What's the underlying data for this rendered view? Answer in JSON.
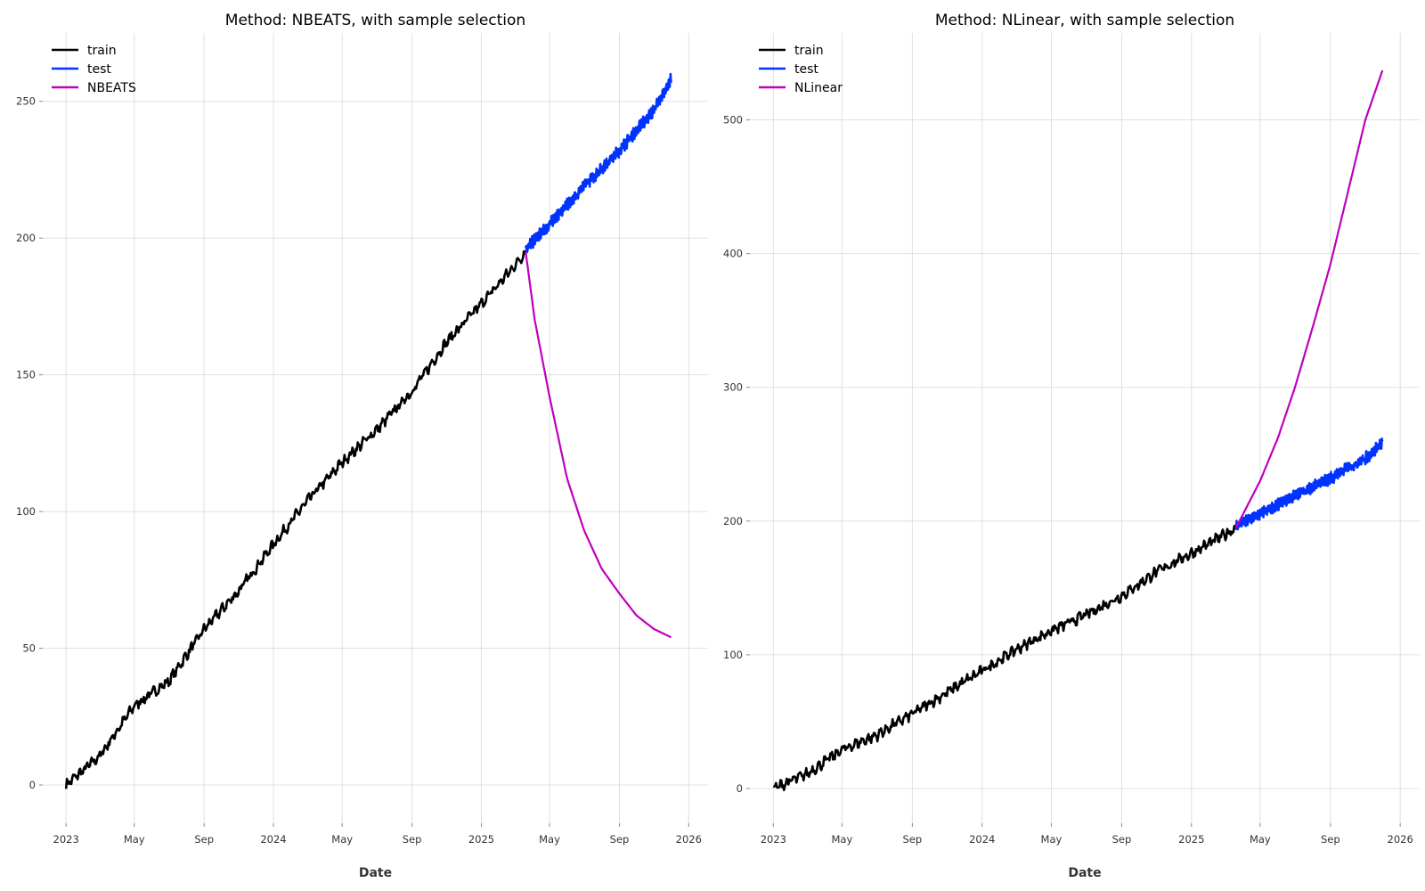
{
  "chart_data": [
    {
      "type": "line",
      "title": "Method: NBEATS, with sample selection",
      "xlabel": "Date",
      "ylabel": "",
      "x_ticks": [
        {
          "date": "2023-01-01",
          "label": "2023"
        },
        {
          "date": "2023-05-01",
          "label": "May"
        },
        {
          "date": "2023-09-01",
          "label": "Sep"
        },
        {
          "date": "2024-01-01",
          "label": "2024"
        },
        {
          "date": "2024-05-01",
          "label": "May"
        },
        {
          "date": "2024-09-01",
          "label": "Sep"
        },
        {
          "date": "2025-01-01",
          "label": "2025"
        },
        {
          "date": "2025-05-01",
          "label": "May"
        },
        {
          "date": "2025-09-01",
          "label": "Sep"
        },
        {
          "date": "2026-01-01",
          "label": "2026"
        }
      ],
      "y_ticks": [
        0,
        50,
        100,
        150,
        200,
        250
      ],
      "xlim": [
        "2022-11-21",
        "2026-02-04"
      ],
      "ylim": [
        -14,
        275
      ],
      "grid": true,
      "legend_position": "top-left",
      "series": [
        {
          "name": "train",
          "color": "#000000",
          "x": [
            "2023-01-01",
            "2023-03-01",
            "2023-05-01",
            "2023-07-01",
            "2023-09-01",
            "2023-11-01",
            "2024-01-01",
            "2024-03-01",
            "2024-05-01",
            "2024-07-01",
            "2024-09-01",
            "2024-11-01",
            "2025-01-01",
            "2025-03-01",
            "2025-03-20"
          ],
          "y": [
            0,
            10.5,
            29,
            38,
            57,
            71,
            88,
            104,
            118,
            130,
            144,
            162,
            176,
            190,
            195
          ]
        },
        {
          "name": "test",
          "color": "#0033ff",
          "x": [
            "2025-03-20",
            "2025-05-01",
            "2025-07-01",
            "2025-09-01",
            "2025-11-01",
            "2025-12-01"
          ],
          "y": [
            196,
            205,
            219,
            232,
            247,
            258
          ]
        },
        {
          "name": "NBEATS",
          "color": "#bf00bf",
          "x": [
            "2025-03-20",
            "2025-04-05",
            "2025-05-01",
            "2025-06-01",
            "2025-07-01",
            "2025-08-01",
            "2025-09-01",
            "2025-10-01",
            "2025-11-01",
            "2025-12-01"
          ],
          "y": [
            195,
            170,
            142,
            112,
            93,
            79,
            70,
            62,
            57,
            54
          ]
        }
      ]
    },
    {
      "type": "line",
      "title": "Method: NLinear, with sample selection",
      "xlabel": "Date",
      "ylabel": "",
      "x_ticks": [
        {
          "date": "2023-01-01",
          "label": "2023"
        },
        {
          "date": "2023-05-01",
          "label": "May"
        },
        {
          "date": "2023-09-01",
          "label": "Sep"
        },
        {
          "date": "2024-01-01",
          "label": "2024"
        },
        {
          "date": "2024-05-01",
          "label": "May"
        },
        {
          "date": "2024-09-01",
          "label": "Sep"
        },
        {
          "date": "2025-01-01",
          "label": "2025"
        },
        {
          "date": "2025-05-01",
          "label": "May"
        },
        {
          "date": "2025-09-01",
          "label": "Sep"
        },
        {
          "date": "2026-01-01",
          "label": "2026"
        }
      ],
      "y_ticks": [
        0,
        100,
        200,
        300,
        400,
        500
      ],
      "xlim": [
        "2022-11-21",
        "2026-02-04"
      ],
      "ylim": [
        -26,
        565
      ],
      "grid": true,
      "legend_position": "top-left",
      "series": [
        {
          "name": "train",
          "color": "#000000",
          "x": [
            "2023-01-01",
            "2023-03-01",
            "2023-05-01",
            "2023-07-01",
            "2023-09-01",
            "2023-11-01",
            "2024-01-01",
            "2024-03-01",
            "2024-05-01",
            "2024-07-01",
            "2024-09-01",
            "2024-11-01",
            "2025-01-01",
            "2025-03-01",
            "2025-03-20"
          ],
          "y": [
            0,
            11,
            29,
            40,
            56,
            72,
            88,
            104,
            118,
            130,
            144,
            162,
            176,
            190,
            195
          ]
        },
        {
          "name": "test",
          "color": "#0033ff",
          "x": [
            "2025-03-20",
            "2025-05-01",
            "2025-07-01",
            "2025-09-01",
            "2025-11-01",
            "2025-12-01"
          ],
          "y": [
            196,
            205,
            219,
            232,
            247,
            258
          ]
        },
        {
          "name": "NLinear",
          "color": "#bf00bf",
          "x": [
            "2025-03-20",
            "2025-05-01",
            "2025-06-01",
            "2025-07-01",
            "2025-08-01",
            "2025-09-01",
            "2025-10-01",
            "2025-11-01",
            "2025-12-01"
          ],
          "y": [
            195,
            230,
            262,
            300,
            345,
            392,
            445,
            500,
            537
          ]
        }
      ]
    }
  ]
}
